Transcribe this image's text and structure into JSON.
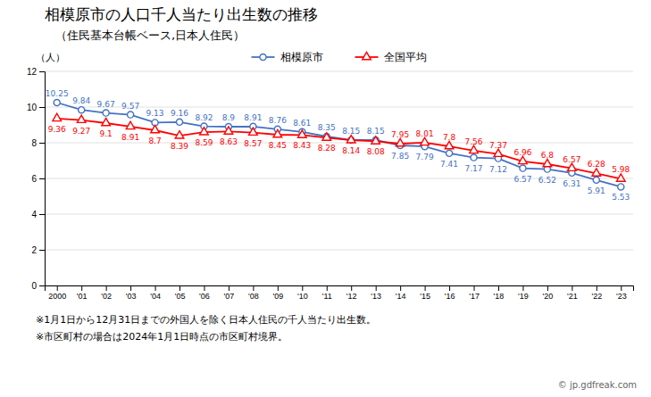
{
  "chart_data": {
    "type": "line",
    "title": "相模原市の人口千人当たり出生数の推移",
    "subtitle": "（住民基本台帳ベース,日本人住民）",
    "ylabel": "（人）",
    "categories": [
      "2000",
      "'01",
      "'02",
      "'03",
      "'04",
      "'05",
      "'06",
      "'07",
      "'08",
      "'09",
      "'10",
      "'11",
      "'12",
      "'13",
      "'14",
      "'15",
      "'16",
      "'17",
      "'18",
      "'19",
      "'20",
      "'21",
      "'22",
      "'23"
    ],
    "series": [
      {
        "name": "相模原市",
        "color": "#4472C4",
        "marker": "circle",
        "values": [
          10.25,
          9.84,
          9.67,
          9.57,
          9.13,
          9.16,
          8.92,
          8.9,
          8.91,
          8.76,
          8.61,
          8.35,
          8.15,
          8.15,
          7.85,
          7.79,
          7.41,
          7.17,
          7.12,
          6.57,
          6.52,
          6.31,
          5.91,
          5.53
        ]
      },
      {
        "name": "全国平均",
        "color": "#FF0000",
        "marker": "triangle",
        "values": [
          9.36,
          9.27,
          9.1,
          8.91,
          8.7,
          8.39,
          8.59,
          8.63,
          8.57,
          8.45,
          8.43,
          8.28,
          8.14,
          8.08,
          7.95,
          8.01,
          7.8,
          7.56,
          7.37,
          6.96,
          6.8,
          6.57,
          6.28,
          5.98
        ]
      }
    ],
    "ylim": [
      0,
      12
    ],
    "yticks": [
      0,
      2,
      4,
      6,
      8,
      10,
      12
    ],
    "grid": true,
    "legend": "top",
    "data_labels": true,
    "annotations": [
      "※1月1日から12月31日までの外国人を除く日本人住民の千人当たり出生数。",
      "※市区町村の場合は2024年1月1日時点の市区町村境界。",
      "© jp.gdfreak.com"
    ]
  }
}
